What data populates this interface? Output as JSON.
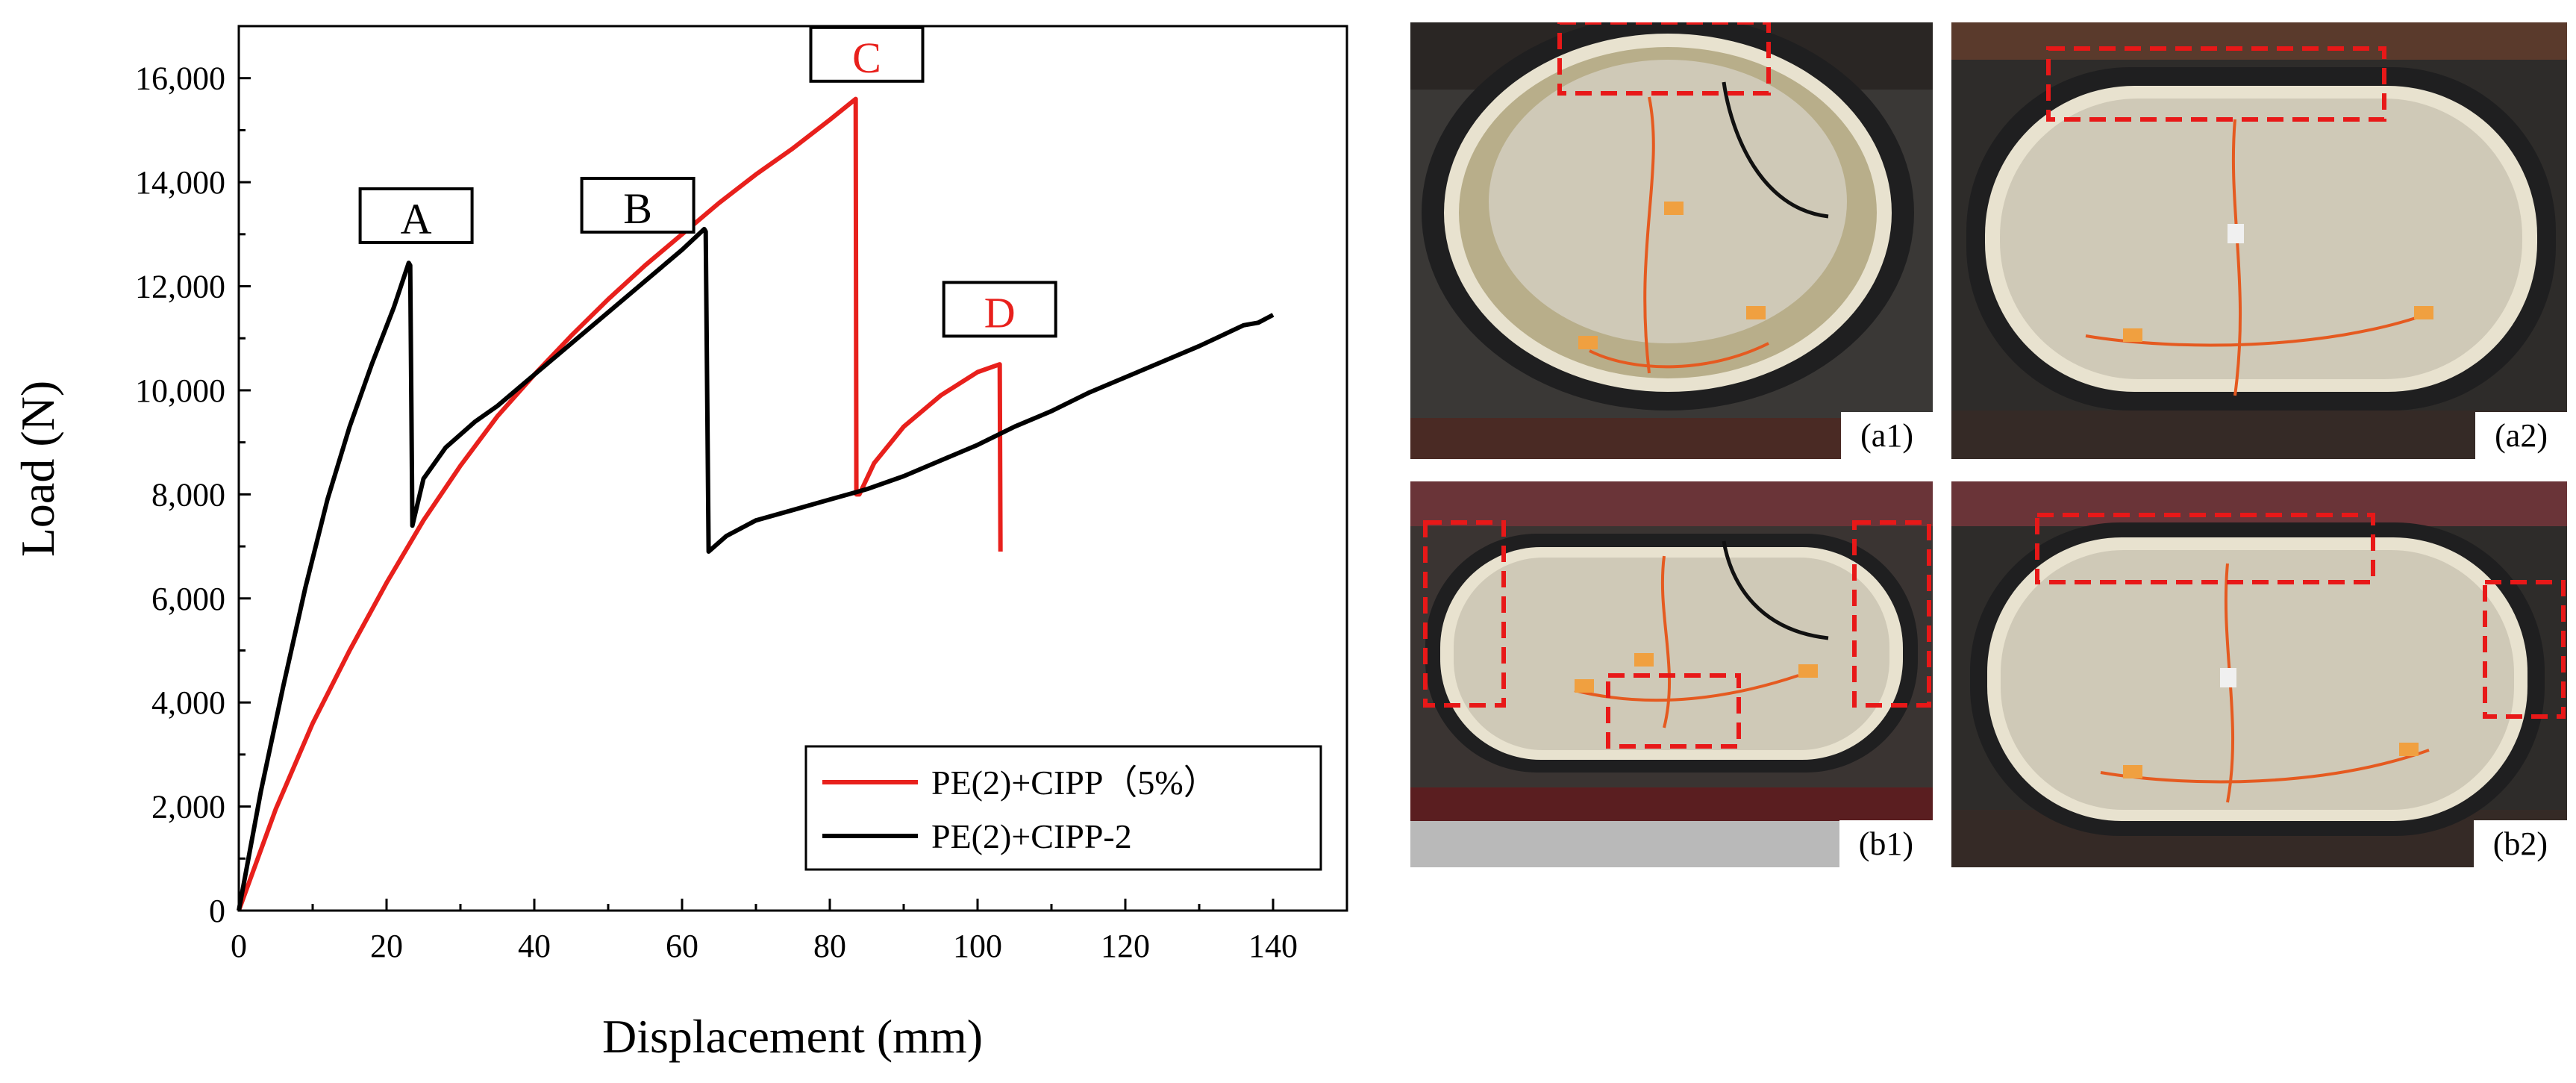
{
  "chart_data": {
    "type": "line",
    "xlabel": "Displacement (mm)",
    "ylabel": "Load (N)",
    "xlim": [
      0,
      150
    ],
    "ylim": [
      0,
      17000
    ],
    "xticks": [
      0,
      20,
      40,
      60,
      80,
      100,
      120,
      140
    ],
    "yticks": [
      0,
      2000,
      4000,
      6000,
      8000,
      10000,
      12000,
      14000,
      16000
    ],
    "ytick_labels": [
      "0",
      "2,000",
      "4,000",
      "6,000",
      "8,000",
      "10,000",
      "12,000",
      "14,000",
      "16,000"
    ],
    "grid": false,
    "legend_position": "bottom-right",
    "series": [
      {
        "name": "PE(2)+CIPP（5%）",
        "color": "#e8201c",
        "x": [
          0,
          5,
          10,
          15,
          20,
          25,
          30,
          35,
          40,
          45,
          50,
          55,
          60,
          65,
          70,
          75,
          80,
          83.5,
          83.6,
          84,
          86,
          90,
          95,
          100,
          103,
          103.1
        ],
        "y": [
          0,
          1950,
          3600,
          5000,
          6300,
          7500,
          8550,
          9500,
          10300,
          11050,
          11750,
          12400,
          13000,
          13600,
          14150,
          14650,
          15200,
          15600,
          8000,
          8000,
          8600,
          9300,
          9900,
          10350,
          10500,
          6900
        ]
      },
      {
        "name": "PE(2)+CIPP-2",
        "color": "#000000",
        "x": [
          0,
          3,
          6,
          9,
          12,
          15,
          18,
          21,
          23,
          23.2,
          23.5,
          25,
          28,
          32,
          35,
          40,
          45,
          50,
          55,
          60,
          63,
          63.2,
          63.6,
          66,
          70,
          75,
          80,
          85,
          90,
          95,
          100,
          105,
          110,
          115,
          120,
          125,
          130,
          133,
          136,
          138,
          140
        ],
        "y": [
          0,
          2300,
          4300,
          6200,
          7900,
          9300,
          10500,
          11600,
          12450,
          12400,
          7400,
          8300,
          8900,
          9400,
          9700,
          10300,
          10900,
          11500,
          12100,
          12700,
          13100,
          13050,
          6900,
          7200,
          7500,
          7700,
          7900,
          8100,
          8350,
          8650,
          8950,
          9300,
          9600,
          9950,
          10250,
          10550,
          10850,
          11050,
          11250,
          11300,
          11450
        ]
      }
    ],
    "annotations": [
      {
        "text": "A",
        "x": 24,
        "y": 13300,
        "color": "#000000"
      },
      {
        "text": "B",
        "x": 54,
        "y": 13500,
        "color": "#000000"
      },
      {
        "text": "C",
        "x": 85,
        "y": 16400,
        "color": "#e8201c"
      },
      {
        "text": "D",
        "x": 103,
        "y": 11500,
        "color": "#e8201c"
      }
    ]
  },
  "photos": [
    {
      "id": "a1",
      "label": "(a1)"
    },
    {
      "id": "a2",
      "label": "(a2)"
    },
    {
      "id": "b1",
      "label": "(b1)"
    },
    {
      "id": "b2",
      "label": "(b2)"
    }
  ]
}
